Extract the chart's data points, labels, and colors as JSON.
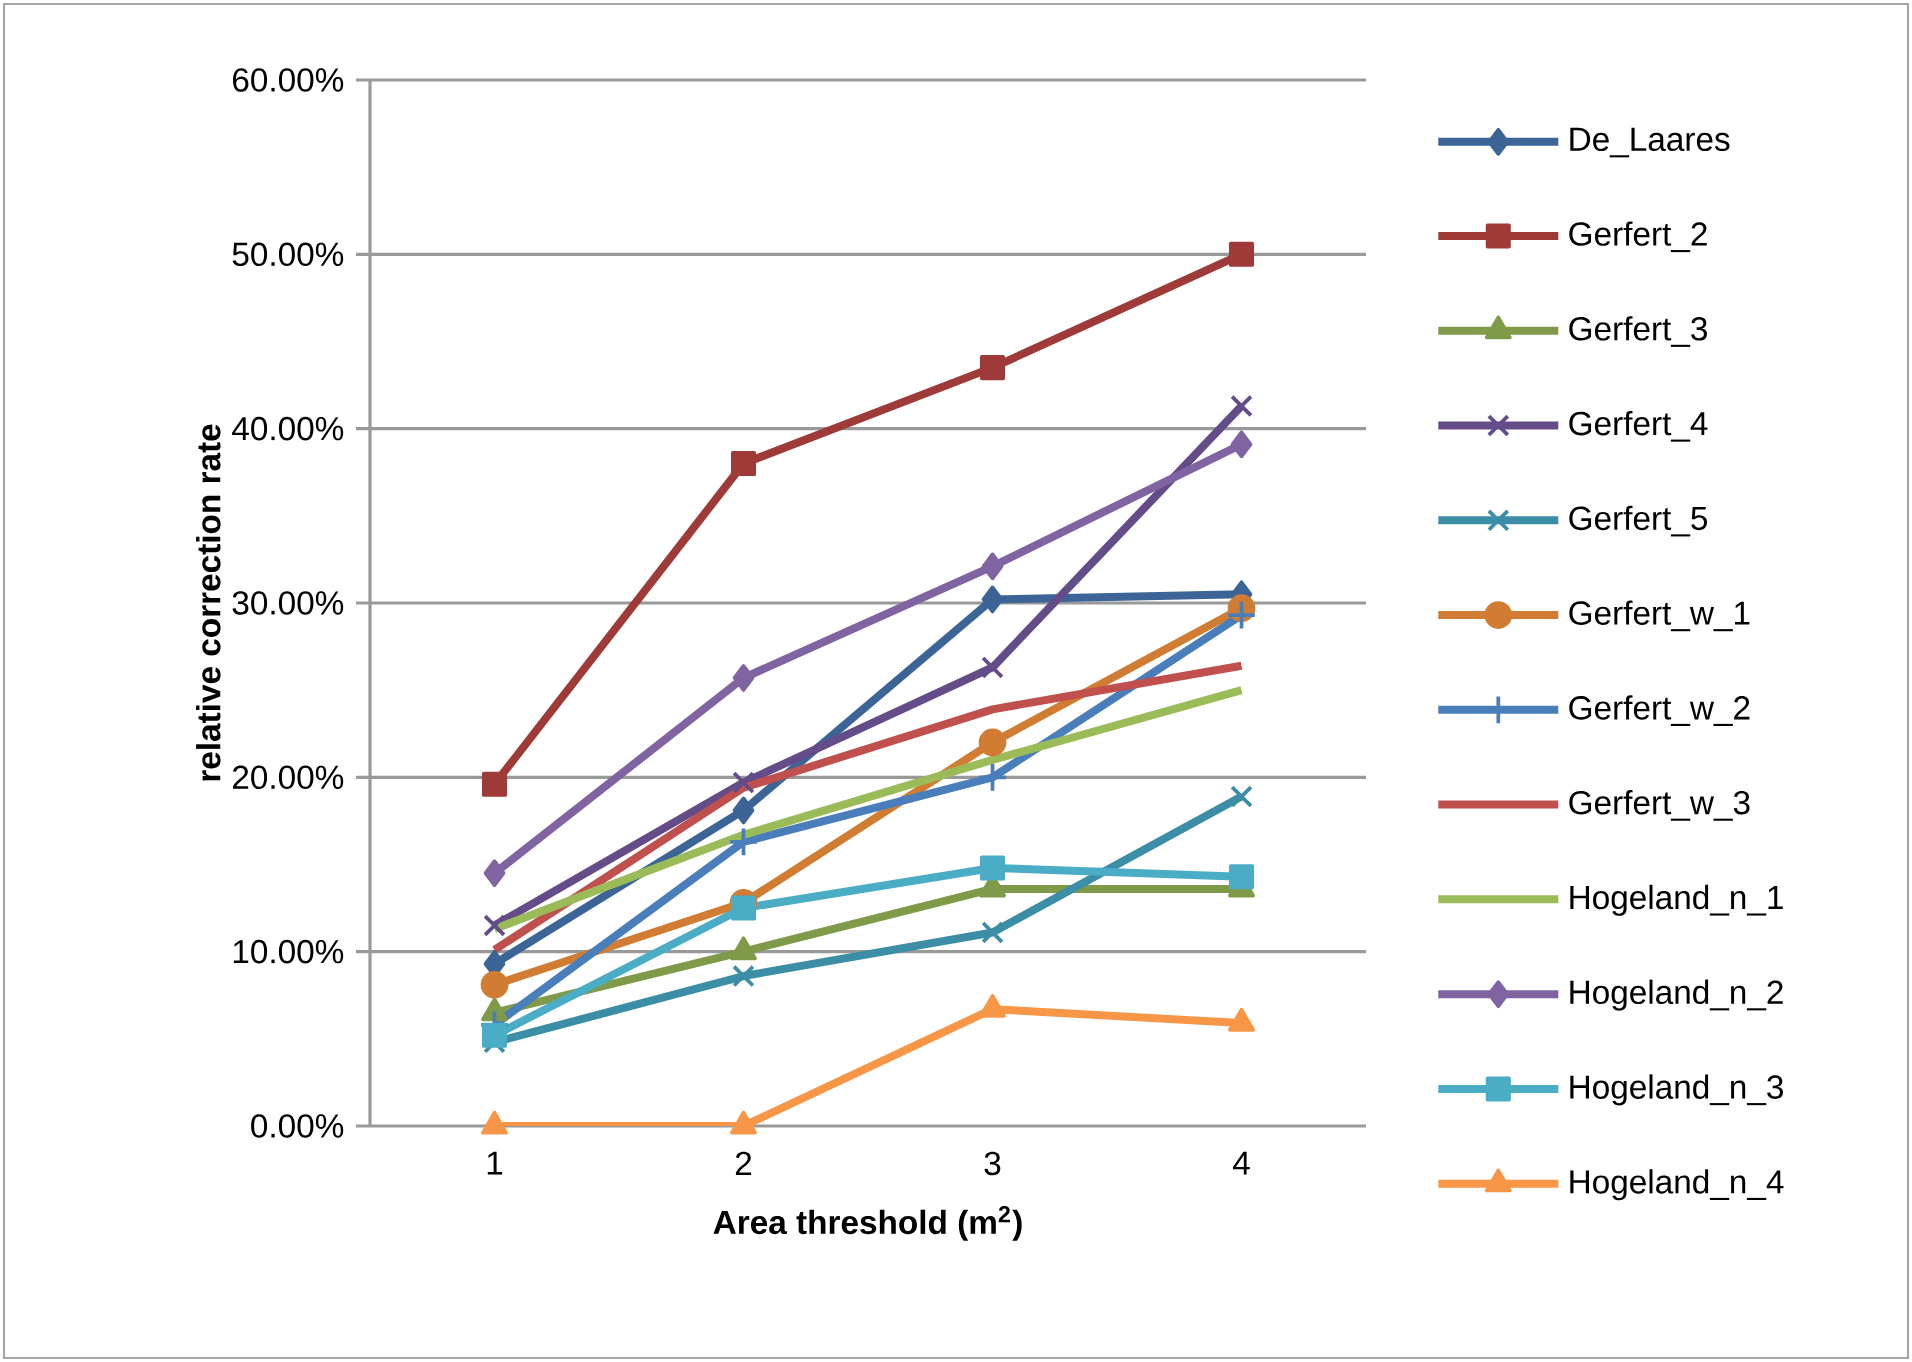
{
  "chart_data": {
    "type": "line",
    "xlabel": "Area threshold (m$^{2}$)",
    "ylabel": "relative correction rate",
    "x": [
      1,
      2,
      3,
      4
    ],
    "xlim": [
      0.5,
      4.5
    ],
    "xticks": [
      1,
      2,
      3,
      4
    ],
    "ylim": [
      0,
      60
    ],
    "yticks": [
      {
        "value": 0,
        "label": "0.00%"
      },
      {
        "value": 10,
        "label": "10.00%"
      },
      {
        "value": 20,
        "label": "20.00%"
      },
      {
        "value": 30,
        "label": "30.00%"
      },
      {
        "value": 40,
        "label": "40.00%"
      },
      {
        "value": 50,
        "label": "50.00%"
      },
      {
        "value": 60,
        "label": "60.00%"
      }
    ],
    "grid": "y",
    "legend": "right",
    "line_style": "solid",
    "series": [
      {
        "name": "De_Laares",
        "color": "#3c6496",
        "marker": "diamond",
        "values": [
          9.3,
          18.1,
          30.2,
          30.5
        ]
      },
      {
        "name": "Gerfert_2",
        "color": "#9e3a38",
        "marker": "square",
        "values": [
          19.6,
          38.0,
          43.5,
          50.0
        ]
      },
      {
        "name": "Gerfert_3",
        "color": "#7f9a48",
        "marker": "triangle",
        "values": [
          6.5,
          10.0,
          13.6,
          13.6
        ]
      },
      {
        "name": "Gerfert_4",
        "color": "#634c87",
        "marker": "cross",
        "values": [
          11.5,
          19.7,
          26.3,
          41.3
        ]
      },
      {
        "name": "Gerfert_5",
        "color": "#3b8ea5",
        "marker": "cross",
        "values": [
          4.8,
          8.6,
          11.1,
          18.9
        ]
      },
      {
        "name": "Gerfert_w_1",
        "color": "#d07c33",
        "marker": "circle",
        "values": [
          8.1,
          12.8,
          22.0,
          29.7
        ]
      },
      {
        "name": "Gerfert_w_2",
        "color": "#4a7ebb",
        "marker": "plus",
        "values": [
          5.8,
          16.3,
          20.0,
          29.3
        ]
      },
      {
        "name": "Gerfert_w_3",
        "color": "#c0504d",
        "marker": "none",
        "values": [
          10.1,
          19.4,
          23.9,
          26.4
        ]
      },
      {
        "name": "Hogeland_n_1",
        "color": "#9bbb59",
        "marker": "none",
        "values": [
          11.3,
          16.7,
          21.0,
          25.0
        ]
      },
      {
        "name": "Hogeland_n_2",
        "color": "#8064a2",
        "marker": "diamond",
        "values": [
          14.5,
          25.7,
          32.1,
          39.1
        ]
      },
      {
        "name": "Hogeland_n_3",
        "color": "#4bacc6",
        "marker": "square",
        "values": [
          5.2,
          12.5,
          14.8,
          14.3
        ]
      },
      {
        "name": "Hogeland_n_4",
        "color": "#f79646",
        "marker": "triangle",
        "values": [
          0,
          0,
          6.7,
          5.9
        ]
      }
    ]
  }
}
